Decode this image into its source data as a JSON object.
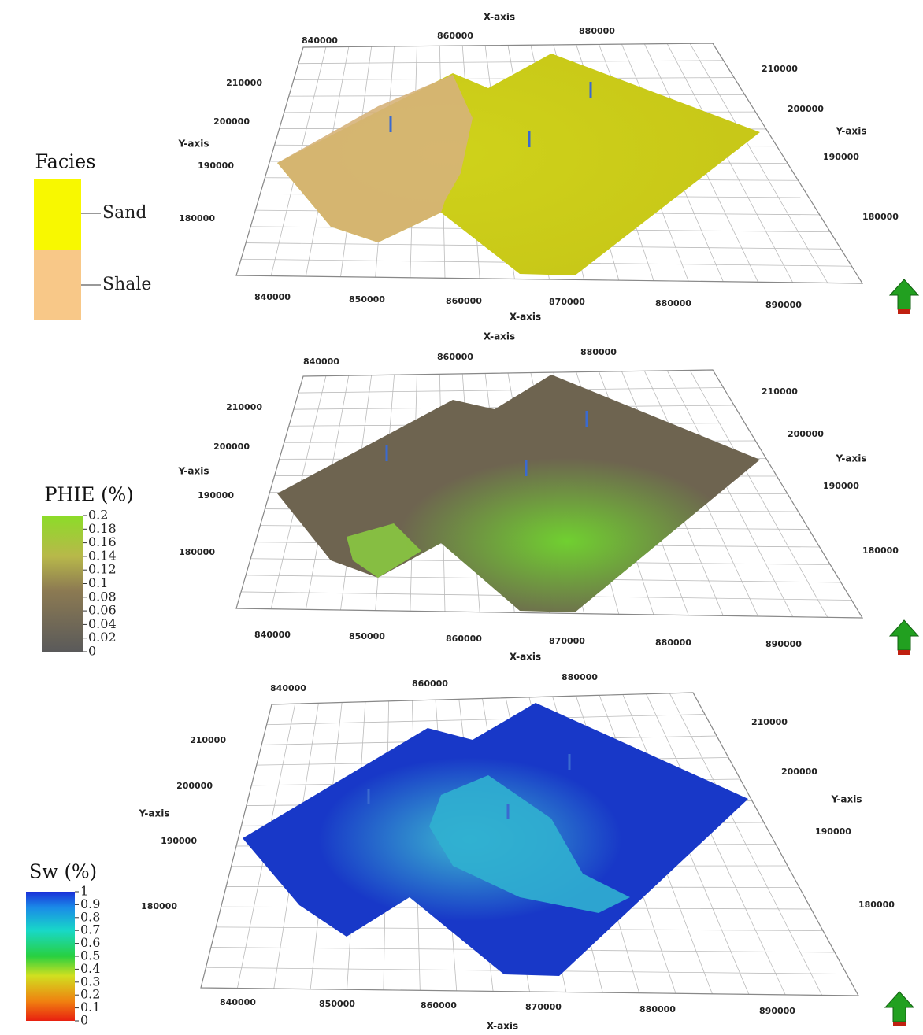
{
  "panels": [
    {
      "x_axis_title_top": "X-axis",
      "x_axis_title_bottom": "X-axis",
      "y_axis_title_left": "Y-axis",
      "y_axis_title_right": "Y-axis",
      "x_ticks_top": [
        "840000",
        "860000",
        "880000"
      ],
      "x_ticks_bottom": [
        "840000",
        "850000",
        "860000",
        "870000",
        "880000",
        "890000"
      ],
      "y_ticks_left": [
        "210000",
        "200000",
        "190000",
        "180000"
      ],
      "y_ticks_right": [
        "210000",
        "200000",
        "190000",
        "180000"
      ],
      "legend": {
        "title": "Facies",
        "labels": [
          "Sand",
          "Shale"
        ]
      }
    },
    {
      "x_axis_title_top": "X-axis",
      "x_axis_title_bottom": "X-axis",
      "y_axis_title_left": "Y-axis",
      "y_axis_title_right": "Y-axis",
      "x_ticks_top": [
        "840000",
        "860000",
        "880000"
      ],
      "x_ticks_bottom": [
        "840000",
        "850000",
        "860000",
        "870000",
        "880000",
        "890000"
      ],
      "y_ticks_left": [
        "210000",
        "200000",
        "190000",
        "180000"
      ],
      "y_ticks_right": [
        "210000",
        "200000",
        "190000",
        "180000"
      ],
      "legend": {
        "title": "PHIE (%)",
        "labels": [
          "0.2",
          "0.18",
          "0.16",
          "0.14",
          "0.12",
          "0.1",
          "0.08",
          "0.06",
          "0.04",
          "0.02",
          "0"
        ]
      }
    },
    {
      "x_axis_title_bottom": "X-axis",
      "y_axis_title_left": "Y-axis",
      "y_axis_title_right": "Y-axis",
      "x_ticks_top": [
        "840000",
        "860000",
        "880000"
      ],
      "x_ticks_bottom": [
        "840000",
        "850000",
        "860000",
        "870000",
        "880000",
        "890000"
      ],
      "y_ticks_left": [
        "210000",
        "200000",
        "190000",
        "180000"
      ],
      "y_ticks_right": [
        "210000",
        "200000",
        "190000",
        "180000"
      ],
      "legend": {
        "title": "Sw (%)",
        "labels": [
          "1",
          "0.9",
          "0.8",
          "0.7",
          "0.6",
          "0.5",
          "0.4",
          "0.3",
          "0.2",
          "0.1",
          "0"
        ]
      }
    }
  ]
}
